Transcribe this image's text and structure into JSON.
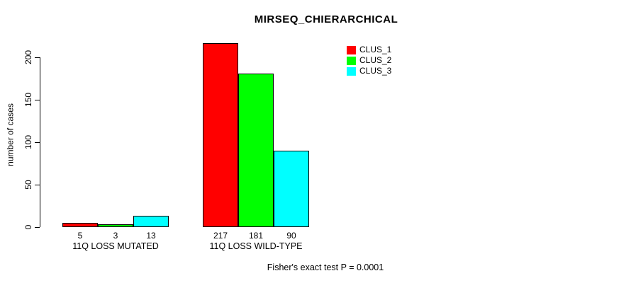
{
  "chart_data": {
    "type": "bar",
    "title": "MIRSEQ_CHIERARCHICAL",
    "ylabel": "number of cases",
    "xlabel": "",
    "ylim": [
      0,
      200
    ],
    "yticks": [
      0,
      50,
      100,
      150,
      200
    ],
    "grid": false,
    "legend_position": "top-right",
    "categories": [
      "11Q LOSS MUTATED",
      "11Q LOSS WILD-TYPE"
    ],
    "series": [
      {
        "name": "CLUS_1",
        "color": "#ff0000",
        "values": [
          5,
          217
        ]
      },
      {
        "name": "CLUS_2",
        "color": "#00ff00",
        "values": [
          3,
          181
        ]
      },
      {
        "name": "CLUS_3",
        "color": "#00ffff",
        "values": [
          13,
          90
        ]
      }
    ],
    "bar_value_labels": [
      [
        "5",
        "3",
        "13"
      ],
      [
        "217",
        "181",
        "90"
      ]
    ],
    "annotation": "Fisher's exact test P = 0.0001"
  },
  "colors": {
    "axis": "#000000",
    "background": "#ffffff",
    "bar_border": "#000000"
  }
}
